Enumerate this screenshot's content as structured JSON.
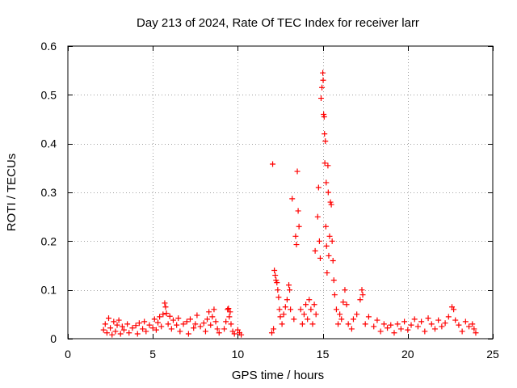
{
  "chart_data": {
    "type": "scatter",
    "title": "Day 213 of 2024, Rate Of TEC Index for receiver larr",
    "xlabel": "GPS time / hours",
    "ylabel": "ROTI / TECUs",
    "xlim": [
      0,
      25
    ],
    "ylim": [
      0,
      0.6
    ],
    "xticks": [
      0,
      5,
      10,
      15,
      20,
      25
    ],
    "xtick_labels": [
      "0",
      "5",
      "10",
      "15",
      "20",
      "25"
    ],
    "yticks": [
      0,
      0.1,
      0.2,
      0.3,
      0.4,
      0.5,
      0.6
    ],
    "ytick_labels": [
      "0",
      "0.1",
      "0.2",
      "0.3",
      "0.4",
      "0.5",
      "0.6"
    ],
    "grid": true,
    "marker": "+",
    "series": [
      {
        "name": "ROTI",
        "color": "#ff0000",
        "points": [
          [
            2.1,
            0.018
          ],
          [
            2.2,
            0.03
          ],
          [
            2.3,
            0.012
          ],
          [
            2.4,
            0.042
          ],
          [
            2.5,
            0.022
          ],
          [
            2.6,
            0.008
          ],
          [
            2.7,
            0.035
          ],
          [
            2.8,
            0.015
          ],
          [
            2.9,
            0.028
          ],
          [
            3.0,
            0.038
          ],
          [
            3.1,
            0.01
          ],
          [
            3.2,
            0.025
          ],
          [
            3.3,
            0.018
          ],
          [
            3.5,
            0.03
          ],
          [
            3.6,
            0.012
          ],
          [
            3.8,
            0.022
          ],
          [
            4.0,
            0.027
          ],
          [
            4.1,
            0.01
          ],
          [
            4.2,
            0.032
          ],
          [
            4.4,
            0.02
          ],
          [
            4.5,
            0.035
          ],
          [
            4.6,
            0.015
          ],
          [
            4.8,
            0.028
          ],
          [
            5.0,
            0.022
          ],
          [
            5.1,
            0.04
          ],
          [
            5.2,
            0.018
          ],
          [
            5.3,
            0.033
          ],
          [
            5.4,
            0.045
          ],
          [
            5.5,
            0.025
          ],
          [
            5.6,
            0.05
          ],
          [
            5.7,
            0.073
          ],
          [
            5.75,
            0.065
          ],
          [
            5.8,
            0.052
          ],
          [
            5.9,
            0.03
          ],
          [
            6.0,
            0.046
          ],
          [
            6.1,
            0.02
          ],
          [
            6.2,
            0.038
          ],
          [
            6.4,
            0.028
          ],
          [
            6.5,
            0.042
          ],
          [
            6.6,
            0.015
          ],
          [
            6.8,
            0.03
          ],
          [
            7.0,
            0.035
          ],
          [
            7.1,
            0.01
          ],
          [
            7.2,
            0.04
          ],
          [
            7.4,
            0.022
          ],
          [
            7.5,
            0.03
          ],
          [
            7.6,
            0.048
          ],
          [
            7.8,
            0.025
          ],
          [
            8.0,
            0.032
          ],
          [
            8.1,
            0.015
          ],
          [
            8.2,
            0.04
          ],
          [
            8.3,
            0.055
          ],
          [
            8.4,
            0.028
          ],
          [
            8.5,
            0.045
          ],
          [
            8.6,
            0.06
          ],
          [
            8.7,
            0.035
          ],
          [
            8.8,
            0.02
          ],
          [
            8.9,
            0.012
          ],
          [
            9.2,
            0.02
          ],
          [
            9.3,
            0.035
          ],
          [
            9.4,
            0.06
          ],
          [
            9.45,
            0.062
          ],
          [
            9.5,
            0.045
          ],
          [
            9.55,
            0.055
          ],
          [
            9.6,
            0.03
          ],
          [
            9.7,
            0.015
          ],
          [
            9.8,
            0.01
          ],
          [
            10.0,
            0.018
          ],
          [
            10.1,
            0.012
          ],
          [
            10.2,
            0.008
          ],
          [
            12.0,
            0.012
          ],
          [
            12.05,
            0.358
          ],
          [
            12.1,
            0.02
          ],
          [
            12.15,
            0.14
          ],
          [
            12.2,
            0.13
          ],
          [
            12.25,
            0.12
          ],
          [
            12.3,
            0.115
          ],
          [
            12.35,
            0.1
          ],
          [
            12.4,
            0.085
          ],
          [
            12.45,
            0.06
          ],
          [
            12.5,
            0.045
          ],
          [
            12.6,
            0.03
          ],
          [
            12.7,
            0.05
          ],
          [
            12.8,
            0.065
          ],
          [
            12.9,
            0.08
          ],
          [
            13.0,
            0.11
          ],
          [
            13.05,
            0.1
          ],
          [
            13.1,
            0.06
          ],
          [
            13.2,
            0.287
          ],
          [
            13.3,
            0.04
          ],
          [
            13.4,
            0.21
          ],
          [
            13.45,
            0.193
          ],
          [
            13.5,
            0.343
          ],
          [
            13.55,
            0.262
          ],
          [
            13.6,
            0.23
          ],
          [
            13.7,
            0.06
          ],
          [
            13.8,
            0.03
          ],
          [
            13.9,
            0.05
          ],
          [
            14.0,
            0.07
          ],
          [
            14.1,
            0.04
          ],
          [
            14.2,
            0.08
          ],
          [
            14.3,
            0.06
          ],
          [
            14.4,
            0.03
          ],
          [
            14.5,
            0.07
          ],
          [
            14.55,
            0.18
          ],
          [
            14.6,
            0.05
          ],
          [
            14.7,
            0.25
          ],
          [
            14.75,
            0.31
          ],
          [
            14.8,
            0.2
          ],
          [
            14.85,
            0.165
          ],
          [
            14.9,
            0.493
          ],
          [
            14.95,
            0.515
          ],
          [
            15.0,
            0.545
          ],
          [
            15.02,
            0.53
          ],
          [
            15.05,
            0.46
          ],
          [
            15.08,
            0.455
          ],
          [
            15.1,
            0.42
          ],
          [
            15.12,
            0.36
          ],
          [
            15.15,
            0.405
          ],
          [
            15.18,
            0.23
          ],
          [
            15.2,
            0.32
          ],
          [
            15.22,
            0.19
          ],
          [
            15.25,
            0.135
          ],
          [
            15.3,
            0.355
          ],
          [
            15.32,
            0.3
          ],
          [
            15.35,
            0.17
          ],
          [
            15.4,
            0.21
          ],
          [
            15.45,
            0.28
          ],
          [
            15.5,
            0.275
          ],
          [
            15.55,
            0.2
          ],
          [
            15.6,
            0.16
          ],
          [
            15.65,
            0.12
          ],
          [
            15.7,
            0.09
          ],
          [
            15.8,
            0.06
          ],
          [
            15.9,
            0.03
          ],
          [
            16.0,
            0.05
          ],
          [
            16.1,
            0.04
          ],
          [
            16.2,
            0.075
          ],
          [
            16.3,
            0.1
          ],
          [
            16.4,
            0.07
          ],
          [
            16.5,
            0.03
          ],
          [
            16.7,
            0.02
          ],
          [
            16.8,
            0.04
          ],
          [
            17.0,
            0.05
          ],
          [
            17.2,
            0.08
          ],
          [
            17.3,
            0.1
          ],
          [
            17.35,
            0.09
          ],
          [
            17.5,
            0.03
          ],
          [
            17.7,
            0.045
          ],
          [
            18.0,
            0.025
          ],
          [
            18.2,
            0.038
          ],
          [
            18.4,
            0.015
          ],
          [
            18.6,
            0.03
          ],
          [
            18.8,
            0.022
          ],
          [
            19.0,
            0.028
          ],
          [
            19.2,
            0.012
          ],
          [
            19.4,
            0.03
          ],
          [
            19.6,
            0.02
          ],
          [
            19.8,
            0.035
          ],
          [
            20.0,
            0.018
          ],
          [
            20.2,
            0.028
          ],
          [
            20.4,
            0.04
          ],
          [
            20.6,
            0.025
          ],
          [
            20.8,
            0.035
          ],
          [
            21.0,
            0.015
          ],
          [
            21.2,
            0.042
          ],
          [
            21.4,
            0.03
          ],
          [
            21.6,
            0.02
          ],
          [
            21.8,
            0.038
          ],
          [
            22.0,
            0.025
          ],
          [
            22.2,
            0.032
          ],
          [
            22.4,
            0.045
          ],
          [
            22.6,
            0.065
          ],
          [
            22.7,
            0.06
          ],
          [
            22.8,
            0.038
          ],
          [
            23.0,
            0.028
          ],
          [
            23.2,
            0.015
          ],
          [
            23.4,
            0.035
          ],
          [
            23.6,
            0.025
          ],
          [
            23.8,
            0.03
          ],
          [
            23.9,
            0.02
          ],
          [
            24.0,
            0.012
          ]
        ]
      }
    ]
  }
}
